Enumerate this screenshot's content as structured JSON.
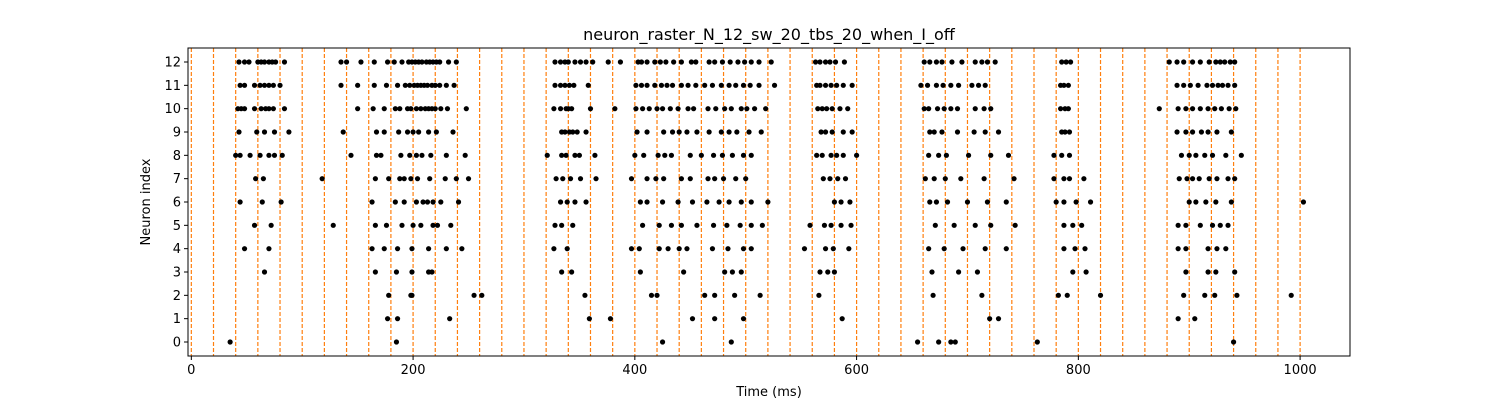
{
  "chart_data": {
    "type": "scatter",
    "title": "neuron_raster_N_12_sw_20_tbs_20_when_I_off",
    "xlabel": "Time (ms)",
    "ylabel": "Neuron index",
    "xlim": [
      -3,
      1045
    ],
    "ylim": [
      -0.6,
      12.6
    ],
    "xticks": [
      0,
      200,
      400,
      600,
      800,
      1000
    ],
    "yticks": [
      0,
      1,
      2,
      3,
      4,
      5,
      6,
      7,
      8,
      9,
      10,
      11,
      12
    ],
    "marker_color": "#000000",
    "vline_color": "#ff7f0e",
    "vlines": [
      0,
      20,
      40,
      60,
      80,
      100,
      120,
      140,
      160,
      180,
      200,
      220,
      240,
      260,
      280,
      300,
      320,
      340,
      360,
      380,
      400,
      420,
      440,
      460,
      480,
      500,
      520,
      540,
      560,
      580,
      600,
      620,
      640,
      660,
      680,
      700,
      720,
      740,
      760,
      780,
      800,
      820,
      840,
      860,
      880,
      900,
      920,
      940,
      960,
      980,
      1000
    ],
    "spikes": {
      "12": [
        43,
        48,
        52,
        60,
        63,
        66,
        70,
        73,
        76,
        84,
        135,
        140,
        153,
        165,
        177,
        183,
        190,
        196,
        199,
        202,
        205,
        208,
        212,
        215,
        218,
        221,
        224,
        232,
        239,
        328,
        333,
        337,
        340,
        346,
        351,
        356,
        362,
        376,
        387,
        403,
        406,
        411,
        418,
        423,
        428,
        435,
        442,
        451,
        455,
        467,
        472,
        479,
        486,
        493,
        499,
        505,
        512,
        523,
        563,
        567,
        572,
        576,
        581,
        589,
        661,
        666,
        672,
        677,
        686,
        695,
        707,
        713,
        718,
        725,
        785,
        789,
        793,
        882,
        889,
        895,
        903,
        910,
        918,
        924,
        928,
        932,
        937,
        941
      ],
      "11": [
        44,
        48,
        57,
        62,
        66,
        70,
        74,
        80,
        135,
        150,
        165,
        176,
        186,
        193,
        197,
        201,
        204,
        207,
        210,
        213,
        217,
        220,
        224,
        230,
        237,
        328,
        333,
        337,
        341,
        345,
        358,
        401,
        406,
        411,
        418,
        424,
        429,
        434,
        442,
        448,
        455,
        463,
        470,
        478,
        485,
        491,
        498,
        504,
        512,
        526,
        564,
        567,
        572,
        577,
        582,
        588,
        596,
        658,
        664,
        672,
        678,
        685,
        692,
        704,
        710,
        716,
        784,
        787,
        791,
        889,
        895,
        901,
        908,
        916,
        921,
        926,
        930,
        935,
        941
      ],
      "10": [
        42,
        45,
        48,
        57,
        63,
        67,
        70,
        74,
        84,
        150,
        164,
        174,
        184,
        188,
        195,
        198,
        203,
        207,
        211,
        214,
        217,
        220,
        225,
        231,
        248,
        327,
        333,
        338,
        340,
        343,
        360,
        382,
        401,
        407,
        413,
        420,
        425,
        432,
        439,
        448,
        453,
        466,
        473,
        481,
        487,
        496,
        501,
        508,
        518,
        565,
        569,
        573,
        578,
        585,
        592,
        661,
        665,
        673,
        679,
        685,
        691,
        707,
        715,
        721,
        784,
        788,
        791,
        873,
        890,
        897,
        903,
        910,
        917,
        923,
        929,
        936,
        942
      ],
      "9": [
        43,
        59,
        66,
        75,
        88,
        137,
        167,
        174,
        187,
        195,
        200,
        205,
        214,
        221,
        236,
        334,
        337,
        341,
        344,
        348,
        356,
        402,
        411,
        426,
        434,
        440,
        447,
        456,
        467,
        478,
        485,
        492,
        503,
        514,
        568,
        572,
        578,
        588,
        596,
        666,
        670,
        677,
        691,
        706,
        716,
        728,
        785,
        788,
        792,
        889,
        897,
        903,
        911,
        917,
        925,
        938
      ],
      "8": [
        40,
        44,
        53,
        62,
        70,
        75,
        82,
        144,
        167,
        171,
        189,
        197,
        203,
        208,
        216,
        230,
        247,
        321,
        334,
        338,
        346,
        350,
        364,
        400,
        408,
        421,
        427,
        433,
        450,
        460,
        471,
        479,
        488,
        498,
        505,
        564,
        569,
        577,
        582,
        588,
        600,
        665,
        674,
        681,
        701,
        721,
        737,
        778,
        785,
        792,
        893,
        900,
        906,
        914,
        921,
        933,
        947
      ],
      "7": [
        58,
        65,
        118,
        166,
        178,
        188,
        192,
        198,
        204,
        215,
        229,
        239,
        250,
        329,
        335,
        342,
        351,
        365,
        397,
        411,
        419,
        426,
        442,
        450,
        466,
        472,
        480,
        491,
        500,
        570,
        576,
        583,
        590,
        662,
        670,
        680,
        694,
        715,
        742,
        778,
        787,
        792,
        805,
        891,
        898,
        903,
        909,
        918,
        925,
        935,
        941
      ],
      "6": [
        44,
        64,
        81,
        163,
        184,
        192,
        203,
        209,
        213,
        218,
        225,
        241,
        333,
        339,
        346,
        356,
        405,
        411,
        425,
        439,
        452,
        465,
        476,
        485,
        496,
        505,
        520,
        580,
        586,
        594,
        666,
        672,
        682,
        700,
        718,
        735,
        780,
        787,
        798,
        811,
        900,
        906,
        915,
        924,
        938,
        1003
      ],
      "5": [
        57,
        72,
        128,
        166,
        176,
        190,
        200,
        207,
        218,
        222,
        234,
        328,
        334,
        344,
        407,
        422,
        433,
        442,
        456,
        471,
        483,
        495,
        505,
        515,
        558,
        571,
        577,
        586,
        595,
        671,
        688,
        707,
        721,
        743,
        787,
        795,
        803,
        890,
        897,
        910,
        921,
        928,
        935
      ],
      "4": [
        48,
        70,
        163,
        174,
        186,
        199,
        214,
        230,
        244,
        327,
        339,
        397,
        404,
        422,
        430,
        440,
        447,
        470,
        484,
        498,
        505,
        553,
        572,
        579,
        593,
        665,
        679,
        696,
        716,
        735,
        787,
        797,
        806,
        890,
        897,
        917,
        925,
        933
      ],
      "3": [
        66,
        166,
        185,
        199,
        214,
        217,
        334,
        343,
        405,
        444,
        481,
        488,
        496,
        567,
        574,
        580,
        668,
        692,
        709,
        795,
        807,
        897,
        917,
        924,
        941
      ],
      "2": [
        178,
        198,
        199,
        255,
        262,
        355,
        415,
        420,
        463,
        472,
        490,
        513,
        566,
        669,
        713,
        782,
        790,
        820,
        895,
        914,
        923,
        943,
        992
      ],
      "1": [
        177,
        186,
        233,
        359,
        378,
        452,
        472,
        498,
        587,
        720,
        728,
        890,
        905
      ],
      "0": [
        35,
        185,
        425,
        487,
        655,
        674,
        685,
        689,
        763,
        940
      ]
    }
  }
}
